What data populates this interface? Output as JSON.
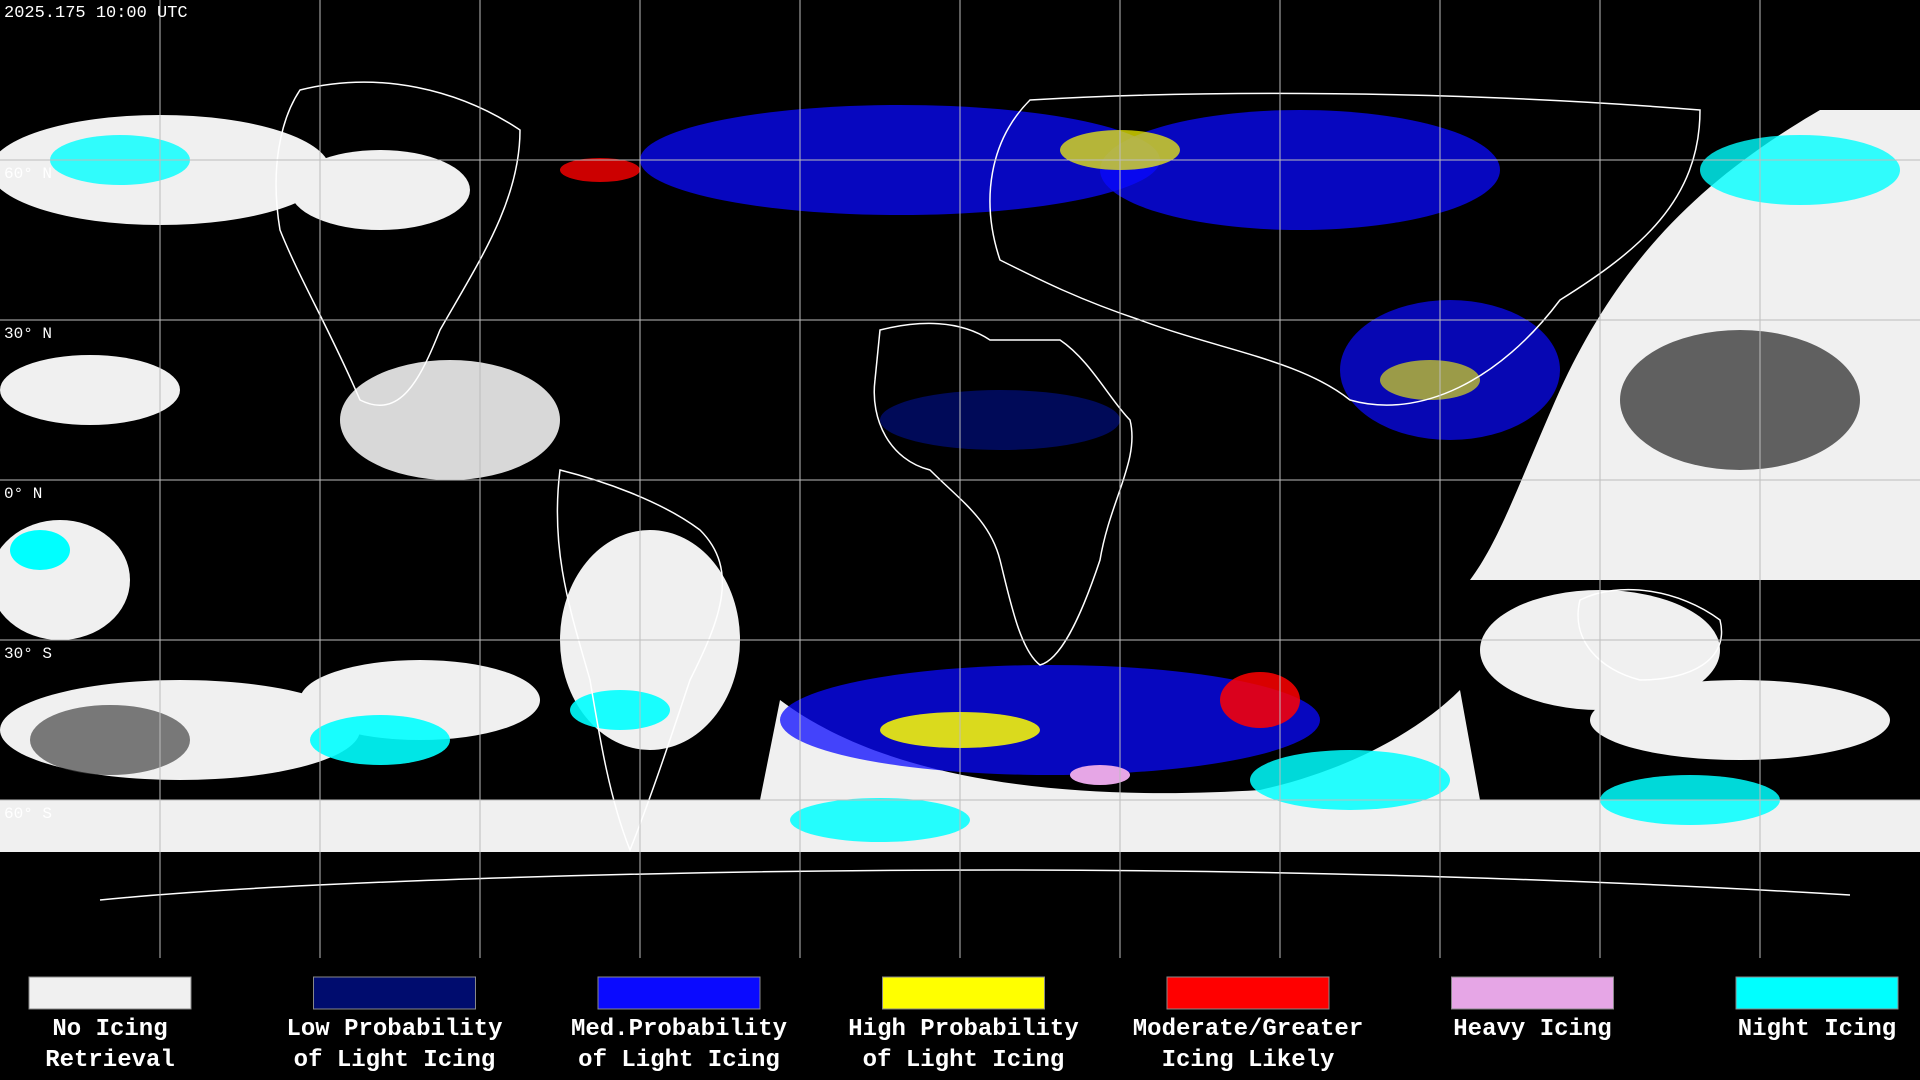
{
  "header": {
    "timestamp": "2025.175 10:00 UTC"
  },
  "map": {
    "latitude_labels": [
      "60° N",
      "30° N",
      "0° N",
      "30° S",
      "60° S"
    ]
  },
  "legend": {
    "items": [
      {
        "color": "#f0f0f0",
        "lines": [
          "No Icing",
          "Retrieval"
        ]
      },
      {
        "color": "#000c6e",
        "lines": [
          "Low Probability",
          "of Light Icing"
        ]
      },
      {
        "color": "#0a0aff",
        "lines": [
          "Med.Probability",
          "of Light Icing"
        ]
      },
      {
        "color": "#ffff00",
        "lines": [
          "High Probability",
          "of Light Icing"
        ]
      },
      {
        "color": "#ff0000",
        "lines": [
          "Moderate/Greater",
          "Icing Likely"
        ]
      },
      {
        "color": "#e6a6e6",
        "lines": [
          "Heavy Icing"
        ]
      },
      {
        "color": "#00ffff",
        "lines": [
          "Night Icing"
        ]
      }
    ]
  }
}
